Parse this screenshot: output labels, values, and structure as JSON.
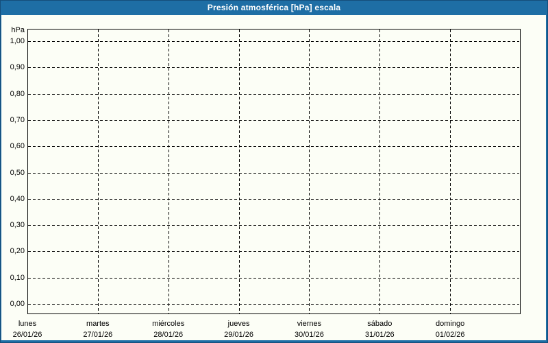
{
  "window": {
    "title": "Presión atmosférica [hPa] escala"
  },
  "colors": {
    "frame_blue": "#1E6EA5",
    "background": "#FCFEF6",
    "grid_line": "#000000",
    "title_text": "#FFFFFF",
    "label_text": "#000000"
  },
  "chart_data": {
    "type": "line",
    "title": "Presión atmosférica [hPa] escala",
    "ylabel": "hPa",
    "xlabel": "",
    "ylim": [
      0.0,
      1.0
    ],
    "y_tick_step": 0.1,
    "y_ticks": [
      "1,00",
      "0,90",
      "0,80",
      "0,70",
      "0,60",
      "0,50",
      "0,40",
      "0,30",
      "0,20",
      "0,10",
      "0,00"
    ],
    "grid": "dashed",
    "legend": "none",
    "categories": [
      {
        "day": "lunes",
        "date": "26/01/26"
      },
      {
        "day": "martes",
        "date": "27/01/26"
      },
      {
        "day": "miércoles",
        "date": "28/01/26"
      },
      {
        "day": "jueves",
        "date": "29/01/26"
      },
      {
        "day": "viernes",
        "date": "30/01/26"
      },
      {
        "day": "sábado",
        "date": "31/01/26"
      },
      {
        "day": "domingo",
        "date": "01/02/26"
      }
    ],
    "series": []
  }
}
